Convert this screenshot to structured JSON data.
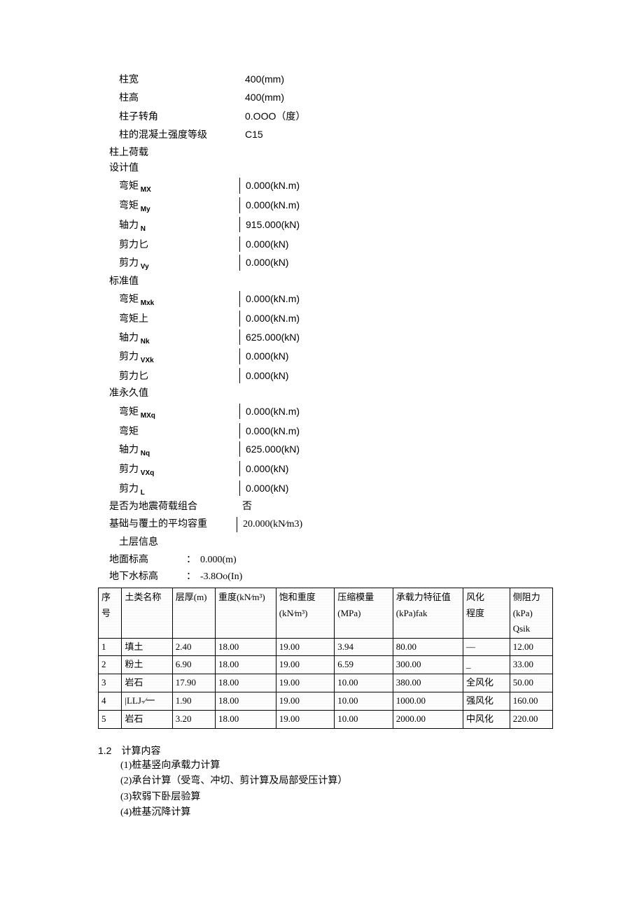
{
  "column_props": [
    {
      "label": "柱宽",
      "value": "400(mm)"
    },
    {
      "label": "柱高",
      "value": "400(mm)"
    },
    {
      "label": "柱子转角",
      "value": "0.OOO（度）"
    },
    {
      "label": "柱的混凝土强度等级",
      "value": "C15"
    }
  ],
  "load_header": "柱上荷载",
  "design_header": "设计值",
  "design_values": [
    {
      "label": "弯矩",
      "sub": "MX",
      "value": "0.000(kN.m)"
    },
    {
      "label": "弯矩",
      "sub": "My",
      "value": "0.000(kN.m)"
    },
    {
      "label": "轴力",
      "sub": "N",
      "value": "915.000(kN)"
    },
    {
      "label": "剪力匕",
      "sub": "",
      "value": "0.000(kN)"
    },
    {
      "label": "剪力",
      "sub": "Vy",
      "value": "0.000(kN)"
    }
  ],
  "standard_header": "标准值",
  "standard_values": [
    {
      "label": "弯矩",
      "sub": "Mxk",
      "value": "0.000(kN.m)"
    },
    {
      "label": "弯矩上",
      "sub": "",
      "value": "0.000(kN.m)"
    },
    {
      "label": "轴力",
      "sub": "Nk",
      "value": "625.000(kN)"
    },
    {
      "label": "剪力",
      "sub": "VXk",
      "value": "0.000(kN)"
    },
    {
      "label": "剪力匕",
      "sub": "",
      "value": "0.000(kN)"
    }
  ],
  "quasi_header": "准永久值",
  "quasi_values": [
    {
      "label": "弯矩",
      "sub": "MXq",
      "value": "0.000(kN.m)"
    },
    {
      "label": "弯矩",
      "sub": "",
      "value": "0.000(kN.m)"
    },
    {
      "label": "轴力",
      "sub": "Nq",
      "value": "625.000(kN)"
    },
    {
      "label": "剪力",
      "sub": "VXq",
      "value": "0.000(kN)"
    },
    {
      "label": "剪力",
      "sub": "L",
      "value": "0.000(kN)"
    }
  ],
  "seismic": {
    "label": "是否为地震荷载组合",
    "value": "否"
  },
  "avg_weight": {
    "label": "基础与覆土的平均容重",
    "value": "20.000(kN∕m3)"
  },
  "soil_header": "土层信息",
  "ground_elev": {
    "label": "地面标高",
    "sep": "：",
    "value": "0.000(m)"
  },
  "water_elev": {
    "label": "地下水标高",
    "sep": "：",
    "value": "-3.8Oo(In)"
  },
  "table": {
    "col_widths": [
      "30px",
      "65px",
      "55px",
      "78px",
      "75px",
      "75px",
      "90px",
      "60px",
      "55px"
    ],
    "headers": [
      "序号",
      "土类名称",
      "层厚(m)",
      "重度(kN∕m³)",
      "饱和重度\n(kN∕m³)",
      "压缩模量\n(MPa)",
      "承载力特征值\n(kPa)fak",
      "风化\n程度",
      "侧阻力\n(kPa)\nQsik"
    ],
    "rows": [
      [
        "1",
        "填土",
        "2.40",
        "18.00",
        "19.00",
        "3.94",
        "80.00",
        "—",
        "12.00"
      ],
      [
        "2",
        "粉土",
        "6.90",
        "18.00",
        "19.00",
        "6.59",
        "300.00",
        "_",
        "33.00"
      ],
      [
        "3",
        "岩石",
        "17.90",
        "18.00",
        "19.00",
        "10.00",
        "380.00",
        "全风化",
        "50.00"
      ],
      [
        "4",
        "|LLJ-∕一",
        "1.90",
        "18.00",
        "19.00",
        "10.00",
        "1000.00",
        "强风化",
        "160.00"
      ],
      [
        "5",
        "岩石",
        "3.20",
        "18.00",
        "19.00",
        "10.00",
        "2000.00",
        "中风化",
        "220.00"
      ]
    ]
  },
  "calc_section": {
    "title": "1.2　计算内容",
    "items": [
      "(1)桩基竖向承载力计算",
      "(2)承台计算（受弯、冲切、剪计算及局部受压计算）",
      "(3)软弱下卧层验算",
      "(4)桩基沉降计算"
    ]
  }
}
